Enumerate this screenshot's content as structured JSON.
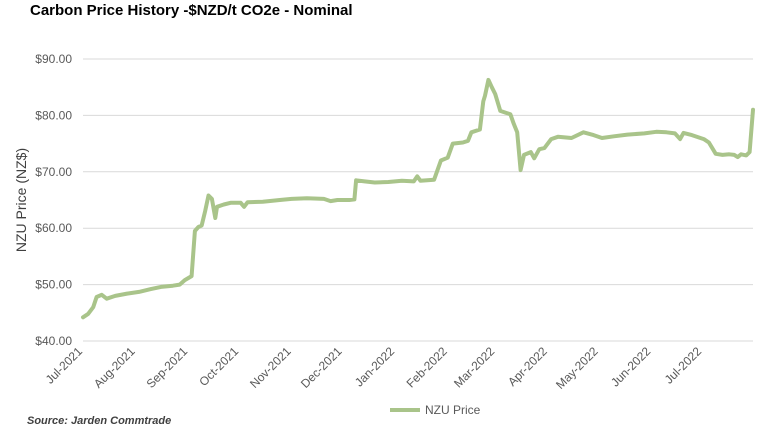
{
  "chart_data": {
    "type": "line",
    "title": "Carbon Price History -$NZD/t CO2e - Nominal",
    "ylabel": "NZU Price (NZ$)",
    "xlabel": "",
    "ylim": [
      40,
      90
    ],
    "y_ticks": [
      "$40.00",
      "$50.00",
      "$60.00",
      "$70.00",
      "$80.00",
      "$90.00"
    ],
    "y_tick_values": [
      40,
      50,
      60,
      70,
      80,
      90
    ],
    "x_tick_labels": [
      "Jul-2021",
      "Aug-2021",
      "Sep-2021",
      "Oct-2021",
      "Nov-2021",
      "Dec-2021",
      "Jan-2022",
      "Feb-2022",
      "Mar-2022",
      "Apr-2022",
      "May-2022",
      "Jun-2022",
      "Jul-2022"
    ],
    "x_range": [
      "2021-07-01",
      "2022-07-31"
    ],
    "grid": true,
    "legend_position": "bottom",
    "source": "Source: Jarden Commtrade",
    "series": [
      {
        "name": "NZU Price",
        "color": "#A9C48A",
        "points": [
          [
            "2021-07-01",
            44.2
          ],
          [
            "2021-07-04",
            44.8
          ],
          [
            "2021-07-07",
            46.0
          ],
          [
            "2021-07-09",
            47.8
          ],
          [
            "2021-07-12",
            48.2
          ],
          [
            "2021-07-15",
            47.5
          ],
          [
            "2021-07-20",
            48.0
          ],
          [
            "2021-07-27",
            48.4
          ],
          [
            "2021-08-03",
            48.7
          ],
          [
            "2021-08-10",
            49.2
          ],
          [
            "2021-08-16",
            49.6
          ],
          [
            "2021-08-23",
            49.8
          ],
          [
            "2021-08-27",
            50.0
          ],
          [
            "2021-08-30",
            50.8
          ],
          [
            "2021-09-03",
            51.5
          ],
          [
            "2021-09-05",
            59.5
          ],
          [
            "2021-09-07",
            60.2
          ],
          [
            "2021-09-09",
            60.5
          ],
          [
            "2021-09-11",
            63.0
          ],
          [
            "2021-09-13",
            65.8
          ],
          [
            "2021-09-15",
            65.2
          ],
          [
            "2021-09-17",
            61.8
          ],
          [
            "2021-09-18",
            63.8
          ],
          [
            "2021-09-22",
            64.2
          ],
          [
            "2021-09-26",
            64.5
          ],
          [
            "2021-10-02",
            64.5
          ],
          [
            "2021-10-04",
            63.8
          ],
          [
            "2021-10-06",
            64.6
          ],
          [
            "2021-10-15",
            64.7
          ],
          [
            "2021-10-25",
            65.0
          ],
          [
            "2021-11-01",
            65.2
          ],
          [
            "2021-11-10",
            65.3
          ],
          [
            "2021-11-20",
            65.2
          ],
          [
            "2021-11-24",
            64.8
          ],
          [
            "2021-11-28",
            65.0
          ],
          [
            "2021-12-05",
            65.0
          ],
          [
            "2021-12-08",
            65.1
          ],
          [
            "2021-12-09",
            68.5
          ],
          [
            "2021-12-14",
            68.3
          ],
          [
            "2021-12-20",
            68.1
          ],
          [
            "2021-12-28",
            68.2
          ],
          [
            "2022-01-05",
            68.4
          ],
          [
            "2022-01-12",
            68.3
          ],
          [
            "2022-01-14",
            69.2
          ],
          [
            "2022-01-16",
            68.4
          ],
          [
            "2022-01-24",
            68.6
          ],
          [
            "2022-01-28",
            72.0
          ],
          [
            "2022-02-01",
            72.5
          ],
          [
            "2022-02-04",
            75.0
          ],
          [
            "2022-02-10",
            75.2
          ],
          [
            "2022-02-13",
            75.5
          ],
          [
            "2022-02-15",
            77.0
          ],
          [
            "2022-02-20",
            77.5
          ],
          [
            "2022-02-22",
            82.5
          ],
          [
            "2022-02-23",
            83.5
          ],
          [
            "2022-02-25",
            86.3
          ],
          [
            "2022-02-27",
            85.0
          ],
          [
            "2022-03-01",
            83.8
          ],
          [
            "2022-03-04",
            80.8
          ],
          [
            "2022-03-07",
            80.5
          ],
          [
            "2022-03-10",
            80.2
          ],
          [
            "2022-03-12",
            78.5
          ],
          [
            "2022-03-14",
            77.0
          ],
          [
            "2022-03-16",
            70.3
          ],
          [
            "2022-03-18",
            73.0
          ],
          [
            "2022-03-22",
            73.5
          ],
          [
            "2022-03-24",
            72.4
          ],
          [
            "2022-03-27",
            74.0
          ],
          [
            "2022-03-30",
            74.2
          ],
          [
            "2022-04-03",
            75.8
          ],
          [
            "2022-04-07",
            76.2
          ],
          [
            "2022-04-15",
            76.0
          ],
          [
            "2022-04-22",
            77.0
          ],
          [
            "2022-04-28",
            76.5
          ],
          [
            "2022-05-03",
            76.0
          ],
          [
            "2022-05-10",
            76.3
          ],
          [
            "2022-05-18",
            76.6
          ],
          [
            "2022-05-28",
            76.8
          ],
          [
            "2022-06-04",
            77.1
          ],
          [
            "2022-06-10",
            77.0
          ],
          [
            "2022-06-15",
            76.8
          ],
          [
            "2022-06-18",
            75.8
          ],
          [
            "2022-06-20",
            76.9
          ],
          [
            "2022-06-25",
            76.5
          ],
          [
            "2022-07-02",
            75.8
          ],
          [
            "2022-07-05",
            75.2
          ],
          [
            "2022-07-09",
            73.2
          ],
          [
            "2022-07-13",
            73.0
          ],
          [
            "2022-07-17",
            73.1
          ],
          [
            "2022-07-20",
            73.0
          ],
          [
            "2022-07-22",
            72.6
          ],
          [
            "2022-07-24",
            73.1
          ],
          [
            "2022-07-27",
            72.9
          ],
          [
            "2022-07-29",
            73.5
          ],
          [
            "2022-07-31",
            81.0
          ]
        ]
      }
    ]
  }
}
